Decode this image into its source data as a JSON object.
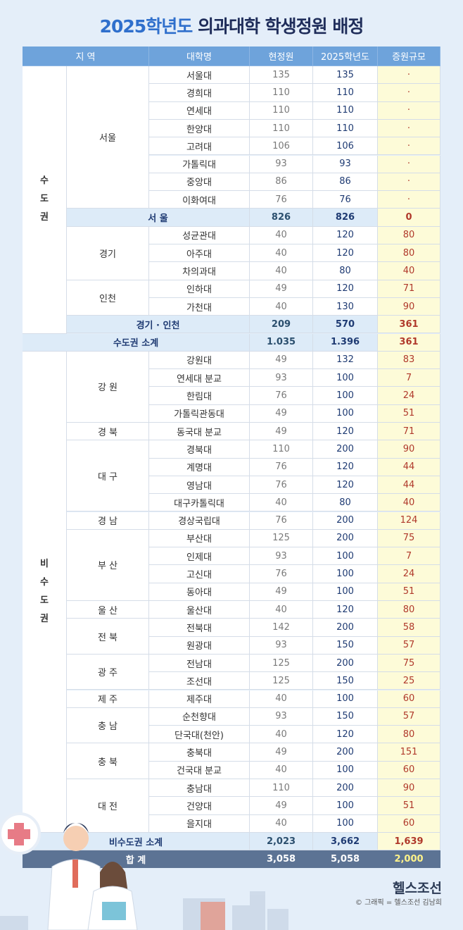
{
  "title": {
    "year": "2025학년도",
    "text": "의과대학 학생정원 배정"
  },
  "table": {
    "header": [
      "지 역",
      "대학명",
      "현정원",
      "2025학년도",
      "증원규모"
    ],
    "sections": [
      {
        "region": "수도권",
        "blocks": [
          {
            "subregions": [
              {
                "name": "서울",
                "rows": [
                  [
                    "서울대",
                    135,
                    135,
                    "·"
                  ],
                  [
                    "경희대",
                    110,
                    110,
                    "·"
                  ],
                  [
                    "연세대",
                    110,
                    110,
                    "·"
                  ],
                  [
                    "한양대",
                    110,
                    110,
                    "·"
                  ],
                  [
                    "고려대",
                    106,
                    106,
                    "·"
                  ],
                  [
                    "가톨릭대",
                    93,
                    93,
                    "·"
                  ],
                  [
                    "중앙대",
                    86,
                    86,
                    "·"
                  ],
                  [
                    "이화여대",
                    76,
                    76,
                    "·"
                  ]
                ]
              }
            ],
            "subtotal": [
              "서 울",
              826,
              826,
              0
            ]
          },
          {
            "subregions": [
              {
                "name": "경기",
                "rows": [
                  [
                    "성균관대",
                    40,
                    120,
                    80
                  ],
                  [
                    "아주대",
                    40,
                    120,
                    80
                  ],
                  [
                    "차의과대",
                    40,
                    80,
                    40
                  ]
                ]
              },
              {
                "name": "인천",
                "rows": [
                  [
                    "인하대",
                    49,
                    120,
                    71
                  ],
                  [
                    "가천대",
                    40,
                    130,
                    90
                  ]
                ]
              }
            ],
            "subtotal": [
              "경기 · 인천",
              209,
              570,
              361
            ]
          }
        ],
        "subtotal": [
          "수도권 소계",
          "1.035",
          "1.396",
          361
        ]
      },
      {
        "region": "비수도권",
        "blocks": [
          {
            "subregions": [
              {
                "name": "강 원",
                "rows": [
                  [
                    "강원대",
                    49,
                    132,
                    83
                  ],
                  [
                    "연세대 분교",
                    93,
                    100,
                    7
                  ],
                  [
                    "한림대",
                    76,
                    100,
                    24
                  ],
                  [
                    "가톨릭관동대",
                    49,
                    100,
                    51
                  ]
                ]
              },
              {
                "name": "경 북",
                "rows": [
                  [
                    "동국대 분교",
                    49,
                    120,
                    71
                  ]
                ]
              },
              {
                "name": "대 구",
                "rows": [
                  [
                    "경북대",
                    110,
                    200,
                    90
                  ],
                  [
                    "계명대",
                    76,
                    120,
                    44
                  ],
                  [
                    "영남대",
                    76,
                    120,
                    44
                  ],
                  [
                    "대구카톨릭대",
                    40,
                    80,
                    40
                  ]
                ]
              },
              {
                "name": "경 남",
                "rows": [
                  [
                    "경상국립대",
                    76,
                    200,
                    124
                  ]
                ]
              },
              {
                "name": "부 산",
                "rows": [
                  [
                    "부산대",
                    125,
                    200,
                    75
                  ],
                  [
                    "인제대",
                    93,
                    100,
                    7
                  ],
                  [
                    "고신대",
                    76,
                    100,
                    24
                  ],
                  [
                    "동아대",
                    49,
                    100,
                    51
                  ]
                ]
              },
              {
                "name": "울 산",
                "rows": [
                  [
                    "울산대",
                    40,
                    120,
                    80
                  ]
                ]
              },
              {
                "name": "전 북",
                "rows": [
                  [
                    "전북대",
                    142,
                    200,
                    58
                  ],
                  [
                    "원광대",
                    93,
                    150,
                    57
                  ]
                ]
              },
              {
                "name": "광 주",
                "rows": [
                  [
                    "전남대",
                    125,
                    200,
                    75
                  ],
                  [
                    "조선대",
                    125,
                    150,
                    25
                  ]
                ]
              },
              {
                "name": "제 주",
                "rows": [
                  [
                    "제주대",
                    40,
                    100,
                    60
                  ]
                ]
              },
              {
                "name": "충 남",
                "rows": [
                  [
                    "순천향대",
                    93,
                    150,
                    57
                  ],
                  [
                    "단국대(천안)",
                    40,
                    120,
                    80
                  ]
                ]
              },
              {
                "name": "충 북",
                "rows": [
                  [
                    "충북대",
                    49,
                    200,
                    151
                  ],
                  [
                    "건국대 분교",
                    40,
                    100,
                    60
                  ]
                ]
              },
              {
                "name": "대 전",
                "rows": [
                  [
                    "충남대",
                    110,
                    200,
                    90
                  ],
                  [
                    "건양대",
                    49,
                    100,
                    51
                  ],
                  [
                    "을지대",
                    40,
                    100,
                    60
                  ]
                ]
              }
            ]
          }
        ],
        "subtotal": [
          "비수도권 소계",
          "2,023",
          "3,662",
          "1,639"
        ]
      }
    ],
    "total": [
      "합 계",
      "3,058",
      "5,058",
      "2,000"
    ]
  },
  "footer": {
    "logo": "헬스조선",
    "credit": "© 그래픽 = 헬스조선 김남희"
  }
}
